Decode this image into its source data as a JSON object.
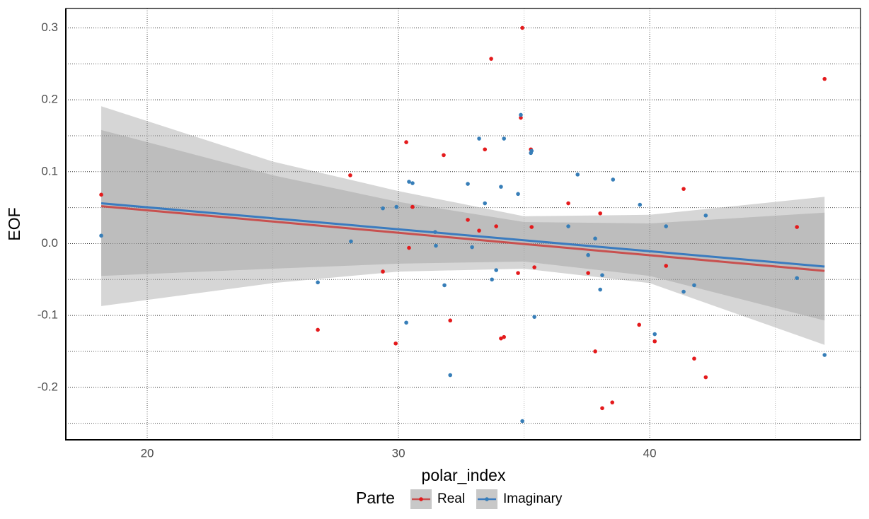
{
  "chart_data": {
    "type": "scatter",
    "x_label": "polar_index",
    "y_label": "EOF",
    "legend_title": "Parte",
    "legend": "bottom",
    "grid": true,
    "xlim": [
      16.76,
      48.39
    ],
    "ylim": [
      -0.273,
      0.327
    ],
    "xticks": [
      20,
      30,
      40
    ],
    "yticks": [
      -0.2,
      -0.1,
      {
        "value": 0,
        "label": "0.0"
      },
      0.1,
      0.2,
      0.3
    ],
    "minor_xticks": [
      25,
      35,
      45
    ],
    "minor_yticks": [
      -0.25,
      -0.15,
      -0.05,
      0.05,
      0.15,
      0.25
    ],
    "series": [
      {
        "name": "Real",
        "color": "#e41a1c",
        "line_color": "#c8504f",
        "x": [
          18.17,
          28.08,
          26.79,
          29.38,
          29.89,
          30.31,
          30.42,
          30.56,
          31.8,
          32.06,
          32.76,
          33.21,
          33.44,
          33.69,
          33.89,
          34.08,
          34.2,
          34.76,
          34.87,
          34.93,
          35.27,
          35.3,
          35.41,
          36.76,
          37.55,
          37.83,
          38.03,
          38.11,
          38.51,
          39.58,
          40.2,
          40.65,
          41.35,
          41.77,
          42.23,
          45.86,
          46.96
        ],
        "values": [
          0.068,
          0.095,
          -0.12,
          -0.039,
          -0.139,
          0.141,
          -0.006,
          0.051,
          0.123,
          -0.107,
          0.033,
          0.018,
          0.131,
          0.257,
          0.024,
          -0.132,
          -0.13,
          -0.041,
          0.175,
          0.3,
          0.131,
          0.023,
          -0.033,
          0.056,
          -0.041,
          -0.15,
          0.042,
          -0.229,
          -0.221,
          -0.113,
          -0.136,
          -0.031,
          0.076,
          -0.16,
          -0.186,
          0.023,
          0.229
        ],
        "fit": {
          "x": [
            18.17,
            46.96
          ],
          "values": [
            0.052,
            -0.038
          ]
        },
        "band": {
          "x": [
            18.17,
            25,
            30,
            35,
            40,
            46.96
          ],
          "upper": [
            0.191,
            0.114,
            0.073,
            0.038,
            0.04,
            0.065
          ],
          "lower": [
            -0.087,
            -0.055,
            -0.039,
            -0.035,
            -0.055,
            -0.141
          ]
        }
      },
      {
        "name": "Imaginary",
        "color": "#377eb8",
        "line_color": "#3a7bbf",
        "x": [
          18.17,
          26.79,
          28.11,
          29.38,
          29.92,
          30.31,
          30.42,
          30.56,
          31.46,
          31.49,
          31.83,
          32.06,
          32.76,
          32.93,
          33.21,
          33.44,
          33.72,
          33.89,
          34.08,
          34.2,
          34.76,
          34.87,
          34.93,
          35.27,
          35.3,
          35.41,
          36.76,
          37.13,
          37.55,
          37.83,
          38.03,
          38.11,
          38.54,
          39.61,
          40.2,
          40.65,
          41.35,
          41.77,
          42.23,
          45.86,
          46.96
        ],
        "values": [
          0.011,
          -0.054,
          0.003,
          0.049,
          0.051,
          -0.11,
          0.086,
          0.084,
          0.016,
          -0.003,
          -0.058,
          -0.183,
          0.083,
          -0.005,
          0.146,
          0.056,
          -0.05,
          -0.037,
          0.079,
          0.146,
          0.069,
          0.179,
          -0.247,
          0.126,
          0.129,
          -0.102,
          0.024,
          0.096,
          -0.016,
          0.007,
          -0.064,
          -0.044,
          0.089,
          0.054,
          -0.126,
          0.024,
          -0.067,
          -0.058,
          0.039,
          -0.048,
          -0.155
        ],
        "fit": {
          "x": [
            18.17,
            46.96
          ],
          "values": [
            0.056,
            -0.032
          ]
        },
        "band": {
          "x": [
            18.17,
            25,
            30,
            35,
            40,
            46.96
          ],
          "upper": [
            0.158,
            0.095,
            0.058,
            0.03,
            0.028,
            0.043
          ],
          "lower": [
            -0.045,
            -0.035,
            -0.028,
            -0.025,
            -0.045,
            -0.107
          ]
        }
      }
    ]
  }
}
